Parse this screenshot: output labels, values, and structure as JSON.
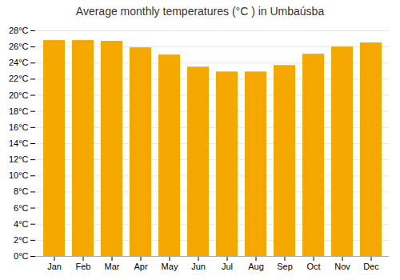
{
  "chart_data": {
    "type": "bar",
    "title": "Average monthly temperatures (°C ) in Umbaúsba",
    "categories": [
      "Jan",
      "Feb",
      "Mar",
      "Apr",
      "May",
      "Jun",
      "Jul",
      "Aug",
      "Sep",
      "Oct",
      "Nov",
      "Dec"
    ],
    "values": [
      26.8,
      26.8,
      26.7,
      25.9,
      25.0,
      23.5,
      22.9,
      22.9,
      23.7,
      25.1,
      26.0,
      26.5
    ],
    "color": "#F5A800",
    "ylim": [
      0,
      28
    ],
    "yticks": [
      {
        "value": 0,
        "label": "0°C"
      },
      {
        "value": 2,
        "label": "2°C"
      },
      {
        "value": 4,
        "label": "4°C"
      },
      {
        "value": 6,
        "label": "6°C"
      },
      {
        "value": 8,
        "label": "8°C"
      },
      {
        "value": 10,
        "label": "10°C"
      },
      {
        "value": 12,
        "label": "12°C"
      },
      {
        "value": 14,
        "label": "14°C"
      },
      {
        "value": 16,
        "label": "16°C"
      },
      {
        "value": 18,
        "label": "18°C"
      },
      {
        "value": 20,
        "label": "20°C"
      },
      {
        "value": 22,
        "label": "22°C"
      },
      {
        "value": 24,
        "label": "24°C"
      },
      {
        "value": 26,
        "label": "26°C"
      },
      {
        "value": 28,
        "label": "28°C"
      }
    ],
    "grid": true
  }
}
